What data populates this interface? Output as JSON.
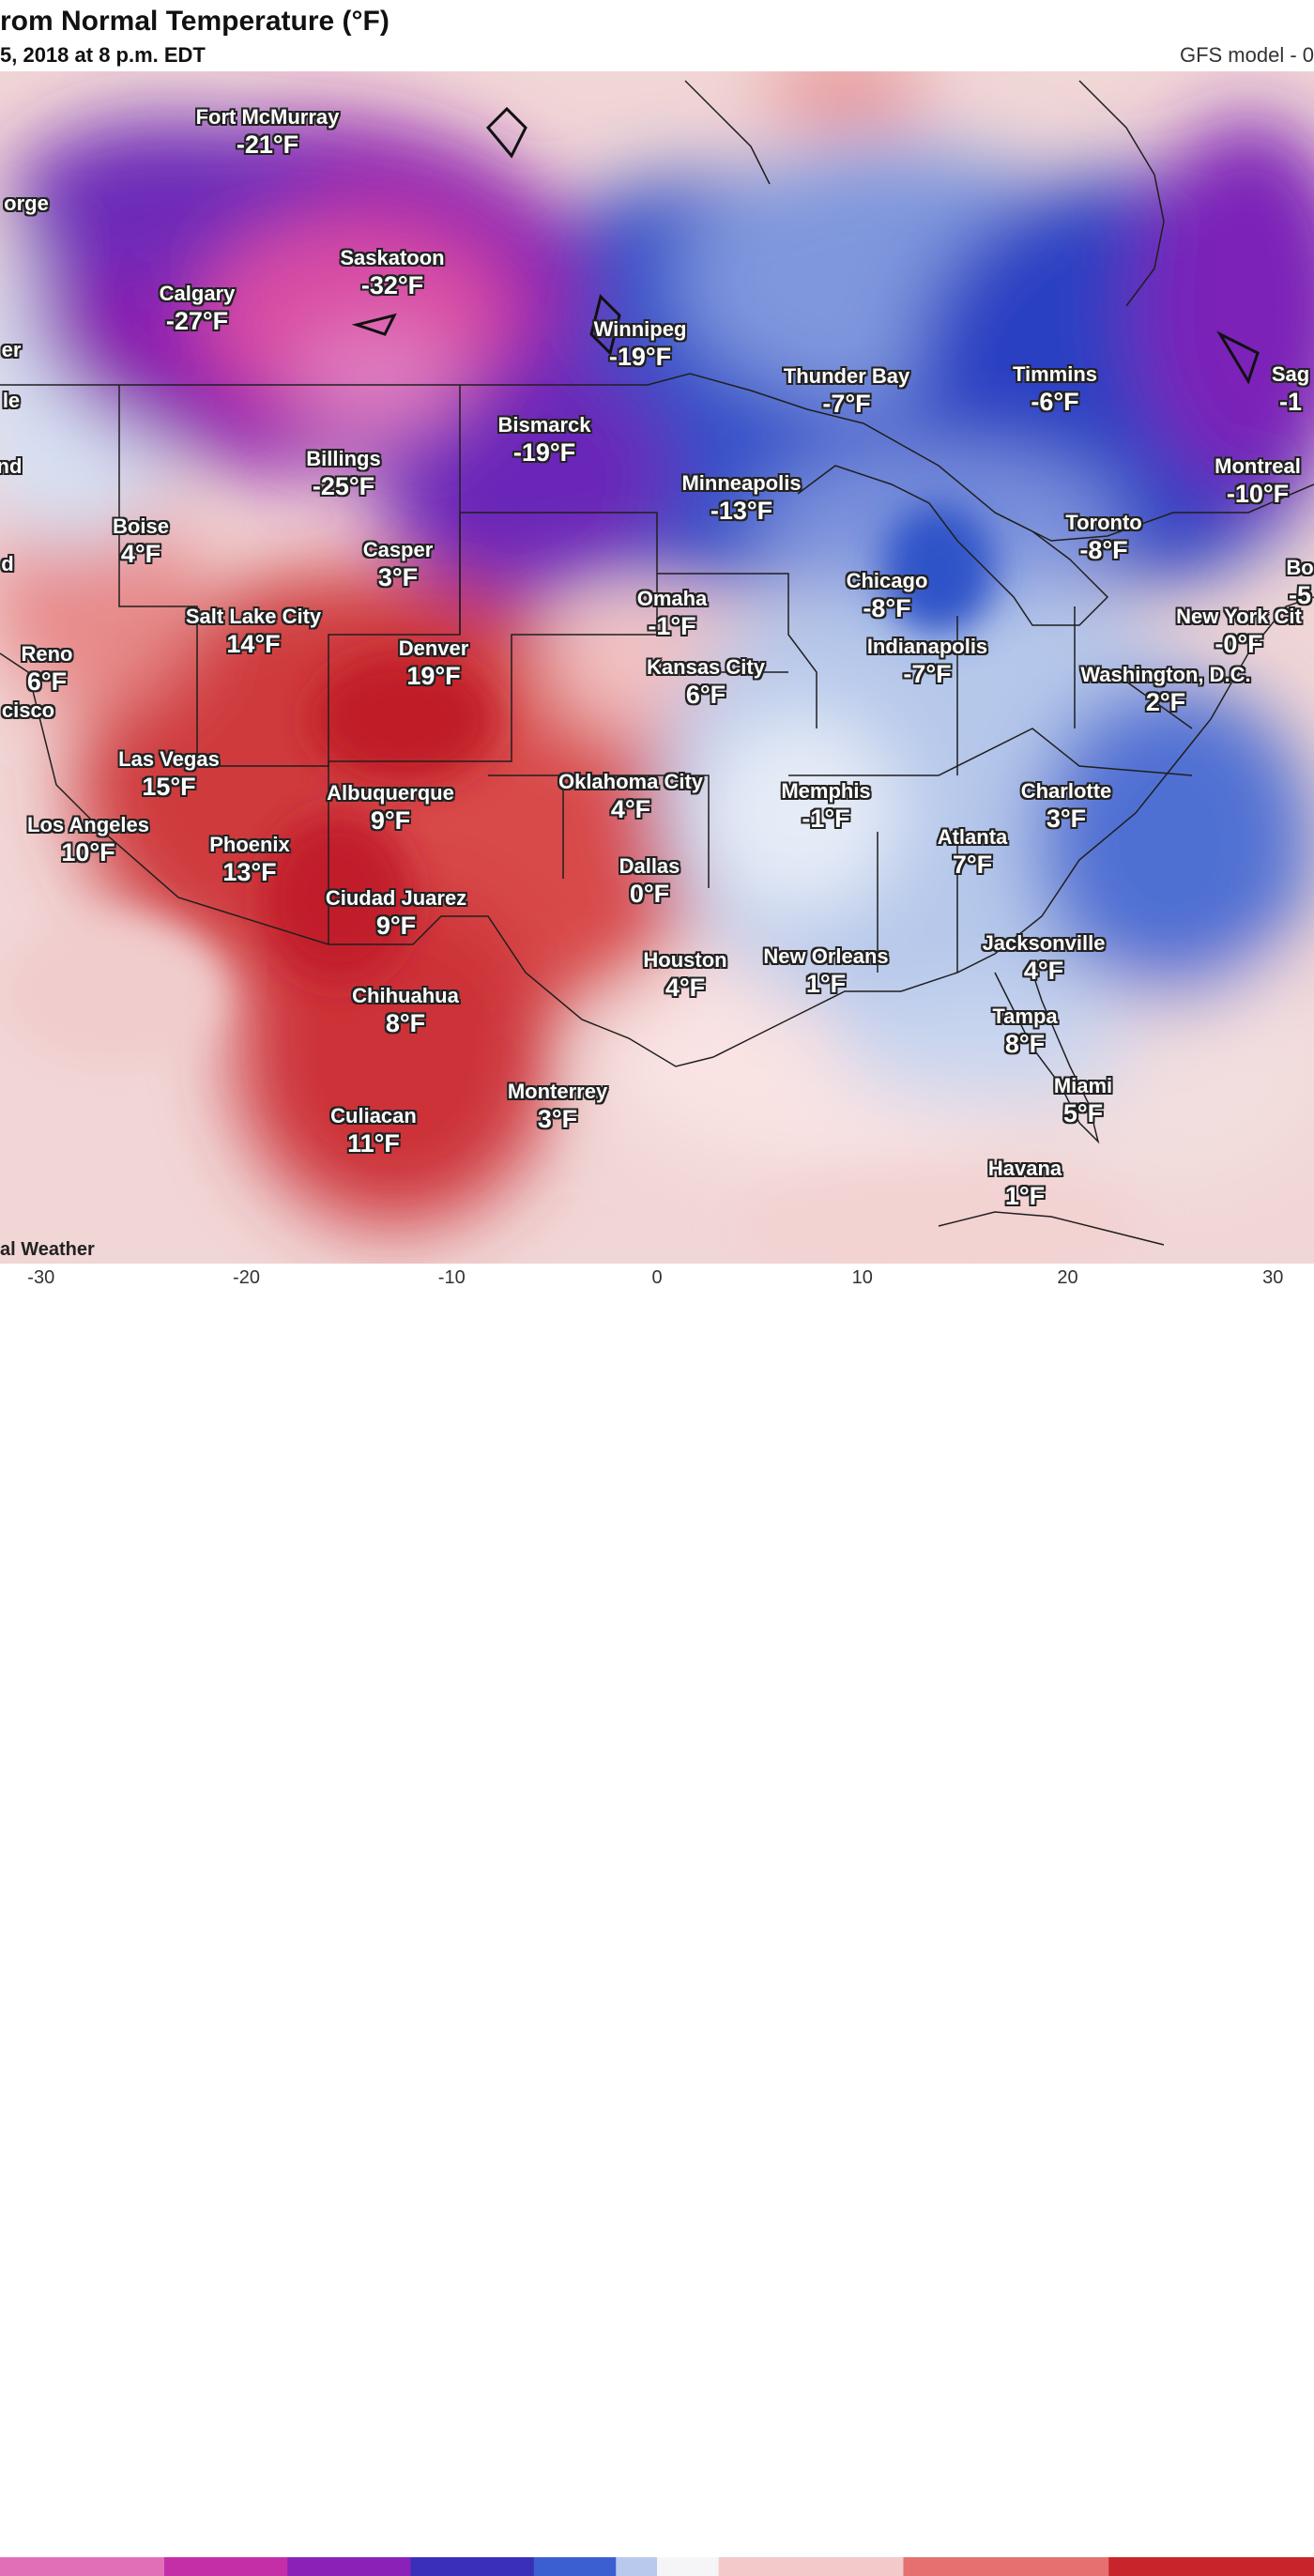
{
  "header": {
    "title": "rom Normal Temperature (°F)",
    "subtitle": "5, 2018 at 8 p.m. EDT",
    "model": "GFS model - 0"
  },
  "credit": "al Weather",
  "colors": {
    "deep_magenta": "#d9479b",
    "purple": "#7a1fb5",
    "blue": "#2f47c7",
    "light_blue": "#c6d5ee",
    "white": "#f6f6f8",
    "pink": "#f3c7c7",
    "red": "#c8242c",
    "border": "#222222"
  },
  "cities": [
    {
      "name": "Fort McMurray",
      "temp": "-21°F"
    },
    {
      "name": "orge",
      "temp": ""
    },
    {
      "name": "Saskatoon",
      "temp": "-32°F"
    },
    {
      "name": "Calgary",
      "temp": "-27°F"
    },
    {
      "name": "er",
      "temp": ""
    },
    {
      "name": "Winnipeg",
      "temp": "-19°F"
    },
    {
      "name": "le",
      "temp": ""
    },
    {
      "name": "Thunder Bay",
      "temp": "-7°F"
    },
    {
      "name": "Timmins",
      "temp": "-6°F"
    },
    {
      "name": "Sag",
      "temp": "-1"
    },
    {
      "name": "Bismarck",
      "temp": "-19°F"
    },
    {
      "name": "Billings",
      "temp": "-25°F"
    },
    {
      "name": "nd",
      "temp": ""
    },
    {
      "name": "Montreal",
      "temp": "-10°F"
    },
    {
      "name": "Minneapolis",
      "temp": "-13°F"
    },
    {
      "name": "Toronto",
      "temp": "-8°F"
    },
    {
      "name": "Boise",
      "temp": "4°F"
    },
    {
      "name": "Casper",
      "temp": "3°F"
    },
    {
      "name": "d",
      "temp": ""
    },
    {
      "name": "Bo",
      "temp": "-5"
    },
    {
      "name": "Chicago",
      "temp": "-8°F"
    },
    {
      "name": "Omaha",
      "temp": "-1°F"
    },
    {
      "name": "Salt Lake City",
      "temp": "14°F"
    },
    {
      "name": "New York Cit",
      "temp": "-0°F"
    },
    {
      "name": "Reno",
      "temp": "6°F"
    },
    {
      "name": "Denver",
      "temp": "19°F"
    },
    {
      "name": "Indianapolis",
      "temp": "-7°F"
    },
    {
      "name": "Kansas City",
      "temp": "6°F"
    },
    {
      "name": "Washington, D.C.",
      "temp": "2°F"
    },
    {
      "name": "cisco",
      "temp": ""
    },
    {
      "name": "Las Vegas",
      "temp": "15°F"
    },
    {
      "name": "Oklahoma City",
      "temp": "4°F"
    },
    {
      "name": "Memphis",
      "temp": "-1°F"
    },
    {
      "name": "Charlotte",
      "temp": "3°F"
    },
    {
      "name": "Albuquerque",
      "temp": "9°F"
    },
    {
      "name": "Los Angeles",
      "temp": "10°F"
    },
    {
      "name": "Atlanta",
      "temp": "7°F"
    },
    {
      "name": "Phoenix",
      "temp": "13°F"
    },
    {
      "name": "Dallas",
      "temp": "0°F"
    },
    {
      "name": "Ciudad Juarez",
      "temp": "9°F"
    },
    {
      "name": "Jacksonville",
      "temp": "4°F"
    },
    {
      "name": "Houston",
      "temp": "4°F"
    },
    {
      "name": "New Orleans",
      "temp": "1°F"
    },
    {
      "name": "Chihuahua",
      "temp": "8°F"
    },
    {
      "name": "Tampa",
      "temp": "8°F"
    },
    {
      "name": "Miami",
      "temp": "5°F"
    },
    {
      "name": "Monterrey",
      "temp": "3°F"
    },
    {
      "name": "Culiacan",
      "temp": "11°F"
    },
    {
      "name": "Havana",
      "temp": "1°F"
    }
  ],
  "legend": {
    "ticks": [
      "-30",
      "-20",
      "-10",
      "0",
      "10",
      "20",
      "30"
    ],
    "range": [
      -32,
      32
    ]
  }
}
